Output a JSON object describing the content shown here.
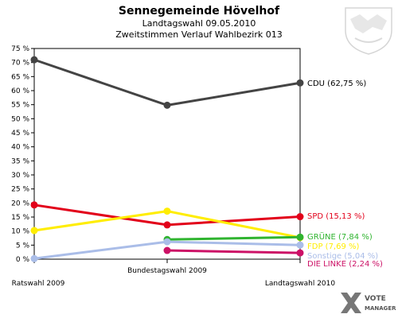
{
  "chart_data": {
    "type": "line",
    "title": "Sennegemeinde Hövelhof",
    "subtitle_1": "Landtagswahl 09.05.2010",
    "subtitle_2": "Zweitstimmen Verlauf Wahlbezirk 013",
    "categories": [
      "Ratswahl 2009",
      "Bundestagswahl 2009",
      "Landtagswahl 2010"
    ],
    "ylim": [
      0,
      75
    ],
    "ytick_step": 5,
    "ytick_suffix": " %",
    "grid": false,
    "series": [
      {
        "key": "cdu",
        "values": [
          71.0,
          54.8,
          62.75
        ],
        "color": "#444444",
        "label_color": "#000000",
        "end_label": "CDU (62,75 %)"
      },
      {
        "key": "spd",
        "values": [
          19.3,
          12.2,
          15.13
        ],
        "color": "#e2001a",
        "label_color": "#e2001a",
        "end_label": "SPD (15,13 %)"
      },
      {
        "key": "fdp",
        "values": [
          10.2,
          17.1,
          7.69
        ],
        "color": "#ffed00",
        "label_color": "#ffed00",
        "end_label": "FDP (7,69 %)"
      },
      {
        "key": "gruene",
        "values": [
          null,
          7.0,
          7.84
        ],
        "color": "#2fb42f",
        "label_color": "#2fb42f",
        "end_label": "GRÜNE (7,84 %)"
      },
      {
        "key": "sonstige",
        "values": [
          0.2,
          6.2,
          5.04
        ],
        "color": "#aabde8",
        "label_color": "#aabde8",
        "end_label": "Sonstige (5,04 %)"
      },
      {
        "key": "linke",
        "values": [
          null,
          3.1,
          2.24
        ],
        "color": "#cc1166",
        "label_color": "#cc1166",
        "end_label": "DIE LINKE (2,24 %)"
      }
    ]
  },
  "branding": {
    "logo_line1": "VOTE",
    "logo_line2": "MANAGER"
  }
}
